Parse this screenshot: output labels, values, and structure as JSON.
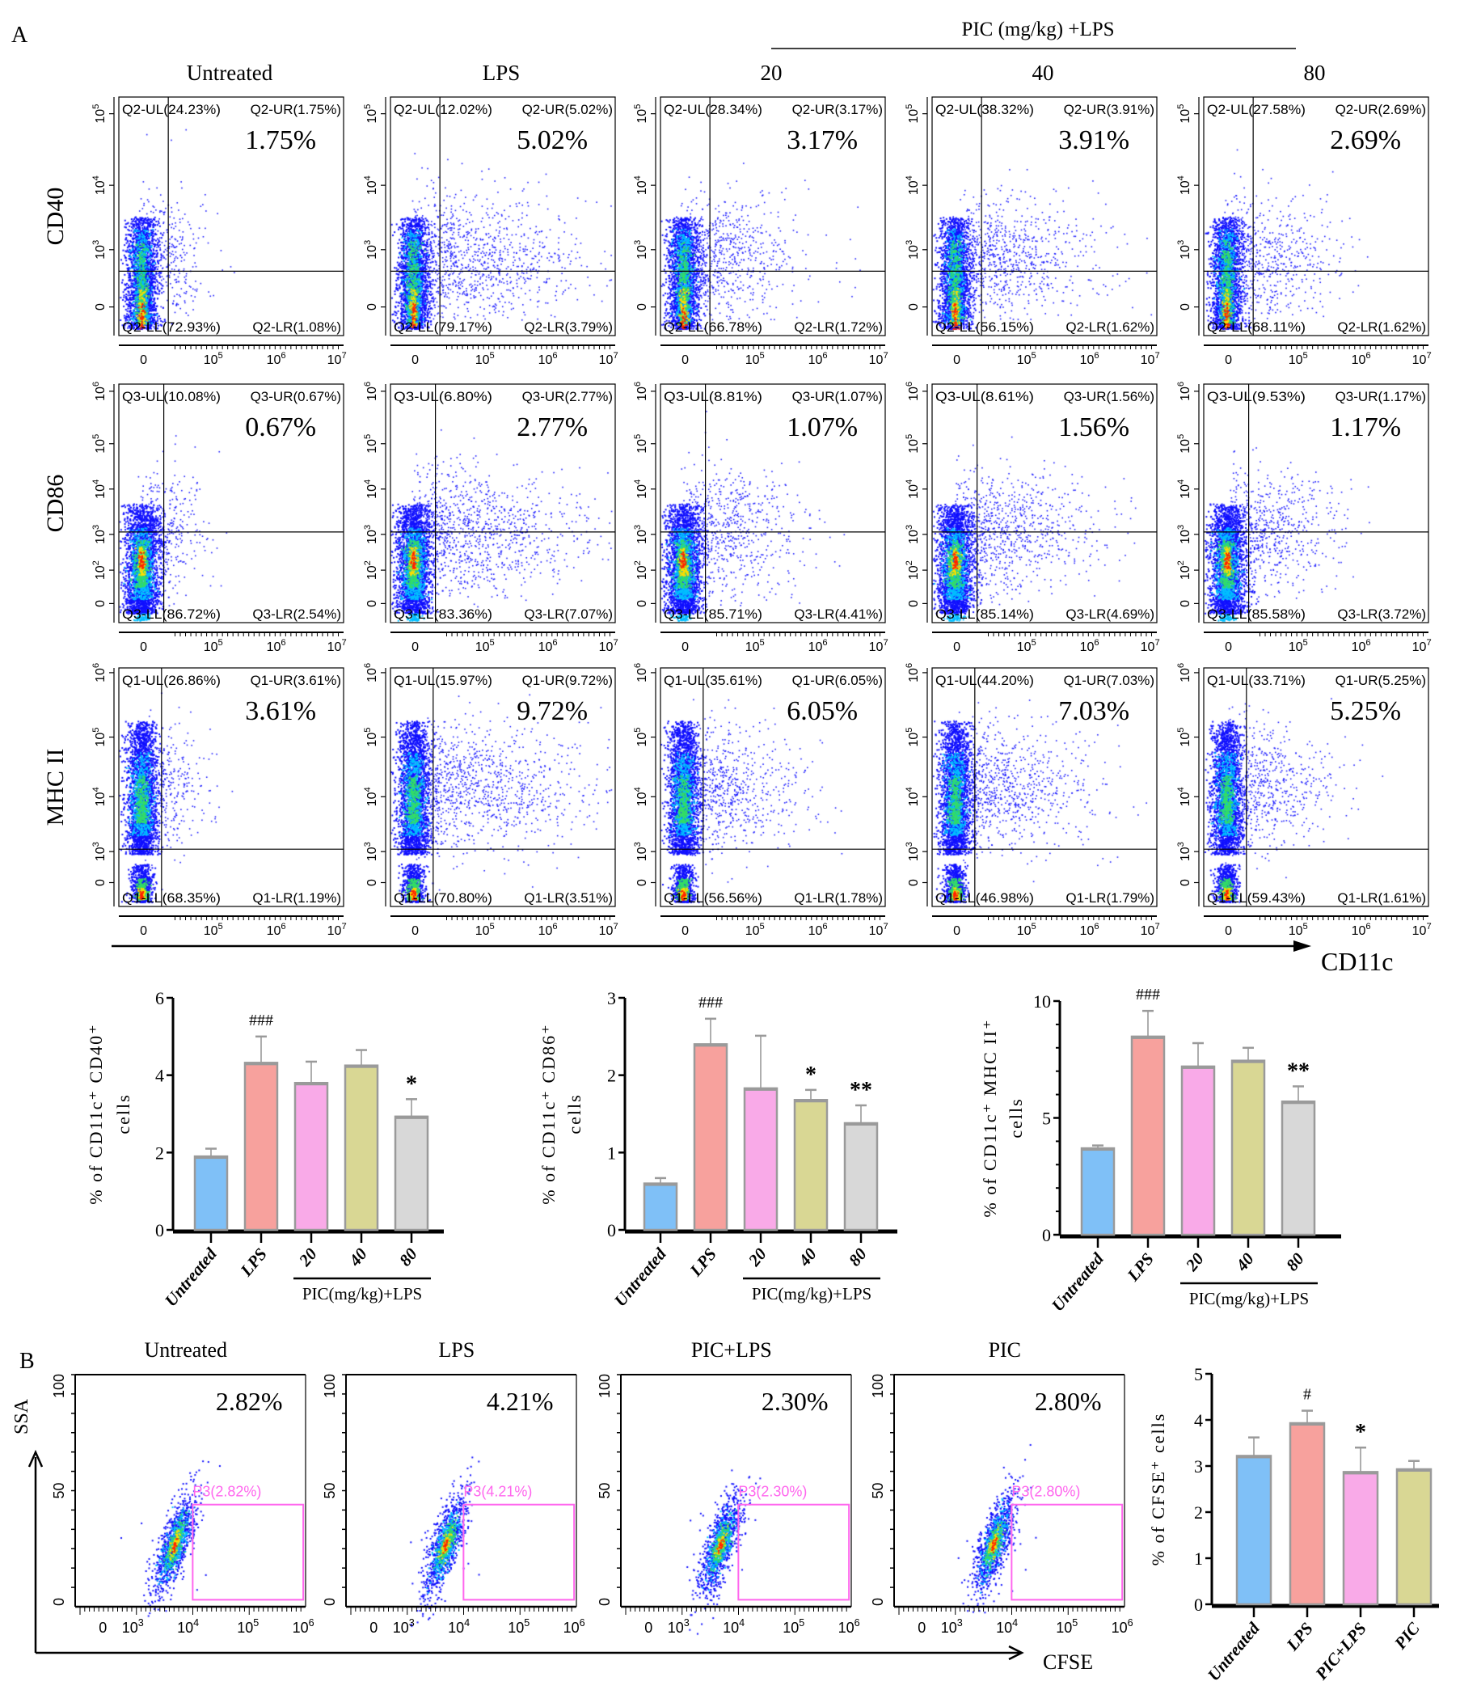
{
  "panel_a": {
    "label": "A",
    "group_header": "PIC (mg/kg) +LPS",
    "columns": [
      "Untreated",
      "LPS",
      "20",
      "40",
      "80"
    ],
    "x_axis_label": "CD11c",
    "x_ticks": [
      {
        "b": "0",
        "e": ""
      },
      {
        "b": "10",
        "e": "5"
      },
      {
        "b": "10",
        "e": "6"
      },
      {
        "b": "10",
        "e": "7"
      }
    ],
    "rows": [
      {
        "marker": "CD40",
        "y_ticks": [
          {
            "b": "0",
            "e": ""
          },
          {
            "b": "10",
            "e": "3"
          },
          {
            "b": "10",
            "e": "4"
          },
          {
            "b": "10",
            "e": "5"
          }
        ],
        "plots": [
          {
            "UL": "Q2-UL(24.23%)",
            "UR": "Q2-UR(1.75%)",
            "LL": "Q2-LL(72.93%)",
            "LR": "Q2-LR(1.08%)",
            "highlight": "1.75%"
          },
          {
            "UL": "Q2-UL(12.02%)",
            "UR": "Q2-UR(5.02%)",
            "LL": "Q2-LL(79.17%)",
            "LR": "Q2-LR(3.79%)",
            "highlight": "5.02%"
          },
          {
            "UL": "Q2-UL(28.34%)",
            "UR": "Q2-UR(3.17%)",
            "LL": "Q2-LL(66.78%)",
            "LR": "Q2-LR(1.72%)",
            "highlight": "3.17%"
          },
          {
            "UL": "Q2-UL(38.32%)",
            "UR": "Q2-UR(3.91%)",
            "LL": "Q2-LL(56.15%)",
            "LR": "Q2-LR(1.62%)",
            "highlight": "3.91%"
          },
          {
            "UL": "Q2-UL(27.58%)",
            "UR": "Q2-UR(2.69%)",
            "LL": "Q2-LL(68.11%)",
            "LR": "Q2-LR(1.62%)",
            "highlight": "2.69%"
          }
        ]
      },
      {
        "marker": "CD86",
        "y_ticks": [
          {
            "b": "0",
            "e": ""
          },
          {
            "b": "10",
            "e": "2"
          },
          {
            "b": "10",
            "e": "3"
          },
          {
            "b": "10",
            "e": "4"
          },
          {
            "b": "10",
            "e": "5"
          },
          {
            "b": "10",
            "e": "6"
          }
        ],
        "plots": [
          {
            "UL": "Q3-UL(10.08%)",
            "UR": "Q3-UR(0.67%)",
            "LL": "Q3-LL(86.72%)",
            "LR": "Q3-LR(2.54%)",
            "highlight": "0.67%"
          },
          {
            "UL": "Q3-UL(6.80%)",
            "UR": "Q3-UR(2.77%)",
            "LL": "Q3-LL(83.36%)",
            "LR": "Q3-LR(7.07%)",
            "highlight": "2.77%"
          },
          {
            "UL": "Q3-UL(8.81%)",
            "UR": "Q3-UR(1.07%)",
            "LL": "Q3-LL(85.71%)",
            "LR": "Q3-LR(4.41%)",
            "highlight": "1.07%"
          },
          {
            "UL": "Q3-UL(8.61%)",
            "UR": "Q3-UR(1.56%)",
            "LL": "Q3-LL(85.14%)",
            "LR": "Q3-LR(4.69%)",
            "highlight": "1.56%"
          },
          {
            "UL": "Q3-UL(9.53%)",
            "UR": "Q3-UR(1.17%)",
            "LL": "Q3-LL(85.58%)",
            "LR": "Q3-LR(3.72%)",
            "highlight": "1.17%"
          }
        ]
      },
      {
        "marker": "MHC II",
        "y_ticks": [
          {
            "b": "0",
            "e": ""
          },
          {
            "b": "10",
            "e": "3"
          },
          {
            "b": "10",
            "e": "4"
          },
          {
            "b": "10",
            "e": "5"
          },
          {
            "b": "10",
            "e": "6"
          }
        ],
        "plots": [
          {
            "UL": "Q1-UL(26.86%)",
            "UR": "Q1-UR(3.61%)",
            "LL": "Q1-LL(68.35%)",
            "LR": "Q1-LR(1.19%)",
            "highlight": "3.61%"
          },
          {
            "UL": "Q1-UL(15.97%)",
            "UR": "Q1-UR(9.72%)",
            "LL": "Q1-LL(70.80%)",
            "LR": "Q1-LR(3.51%)",
            "highlight": "9.72%"
          },
          {
            "UL": "Q1-UL(35.61%)",
            "UR": "Q1-UR(6.05%)",
            "LL": "Q1-LL(56.56%)",
            "LR": "Q1-LR(1.78%)",
            "highlight": "6.05%"
          },
          {
            "UL": "Q1-UL(44.20%)",
            "UR": "Q1-UR(7.03%)",
            "LL": "Q1-LL(46.98%)",
            "LR": "Q1-LR(1.79%)",
            "highlight": "7.03%"
          },
          {
            "UL": "Q1-UL(33.71%)",
            "UR": "Q1-UR(5.25%)",
            "LL": "Q1-LL(59.43%)",
            "LR": "Q1-LR(1.61%)",
            "highlight": "5.25%"
          }
        ]
      }
    ]
  },
  "panel_b": {
    "label": "B",
    "y_axis_label": "SSA",
    "x_axis_label": "CFSE",
    "y_ticks": [
      "0",
      "50",
      "100"
    ],
    "x_ticks": [
      {
        "b": "0",
        "e": ""
      },
      {
        "b": "10",
        "e": "3"
      },
      {
        "b": "10",
        "e": "4"
      },
      {
        "b": "10",
        "e": "5"
      },
      {
        "b": "10",
        "e": "6"
      }
    ],
    "plots": [
      {
        "title": "Untreated",
        "highlight": "2.82%",
        "gate": "P3(2.82%)"
      },
      {
        "title": "LPS",
        "highlight": "4.21%",
        "gate": "P3(4.21%)"
      },
      {
        "title": "PIC+LPS",
        "highlight": "2.30%",
        "gate": "P3(2.30%)"
      },
      {
        "title": "PIC",
        "highlight": "2.80%",
        "gate": "P3(2.80%)"
      }
    ]
  },
  "colors": {
    "untreated": "#7fc0f7",
    "lps": "#f7a19d",
    "pic20": "#f9aae8",
    "pic40": "#d9d794",
    "pic80": "#d8d8d8",
    "gate": "#ff66ee",
    "bar_edge": "#9a9a9a"
  },
  "chart_data": [
    {
      "type": "bar",
      "title": "",
      "ylabel": "% of CD11c⁺ CD40⁺",
      "ylabel2": "cells",
      "categories": [
        "Untreated",
        "LPS",
        "20",
        "40",
        "80"
      ],
      "group_label": "PIC(mg/kg)+LPS",
      "values": [
        1.9,
        4.32,
        3.8,
        4.25,
        2.93
      ],
      "errors": [
        0.2,
        0.68,
        0.55,
        0.4,
        0.45
      ],
      "annotations": [
        "",
        "###",
        "",
        "",
        "*"
      ],
      "ylim": [
        0,
        6
      ],
      "yticks": [
        "0",
        "2",
        "4",
        "6"
      ],
      "ytick_values": [
        0,
        2,
        4,
        6
      ],
      "minor_ticks": 0
    },
    {
      "type": "bar",
      "title": "",
      "ylabel": "% of CD11c⁺ CD86⁺",
      "ylabel2": "cells",
      "categories": [
        "Untreated",
        "LPS",
        "20",
        "40",
        "80"
      ],
      "group_label": "PIC(mg/kg)+LPS",
      "values": [
        0.6,
        2.4,
        1.83,
        1.68,
        1.38
      ],
      "errors": [
        0.07,
        0.33,
        0.68,
        0.13,
        0.23
      ],
      "annotations": [
        "",
        "###",
        "",
        "*",
        "**"
      ],
      "ylim": [
        0,
        3
      ],
      "yticks": [
        "0",
        "1",
        "2",
        "3"
      ],
      "ytick_values": [
        0,
        1,
        2,
        3
      ],
      "minor_ticks": 0
    },
    {
      "type": "bar",
      "title": "",
      "ylabel": "% of CD11c⁺ MHC II⁺",
      "ylabel2": "cells",
      "categories": [
        "Untreated",
        "LPS",
        "20",
        "40",
        "80"
      ],
      "group_label": "PIC(mg/kg)+LPS",
      "values": [
        3.7,
        8.48,
        7.2,
        7.45,
        5.7
      ],
      "errors": [
        0.12,
        1.1,
        1.0,
        0.55,
        0.65
      ],
      "annotations": [
        "",
        "###",
        "",
        "",
        "**"
      ],
      "ylim": [
        0,
        10
      ],
      "yticks": [
        "0",
        "5",
        "10"
      ],
      "ytick_values": [
        0,
        5,
        10
      ],
      "minor_ticks": 1
    },
    {
      "type": "bar",
      "title": "",
      "ylabel": "% of CFSE⁺ cells",
      "ylabel2": "",
      "categories": [
        "Untreated",
        "LPS",
        "PIC+LPS",
        "PIC"
      ],
      "group_label": "",
      "values": [
        3.22,
        3.93,
        2.87,
        2.93
      ],
      "errors": [
        0.4,
        0.27,
        0.53,
        0.18
      ],
      "annotations": [
        "",
        "#",
        "*",
        ""
      ],
      "ylim": [
        0,
        5
      ],
      "yticks": [
        "0",
        "1",
        "2",
        "3",
        "4",
        "5"
      ],
      "ytick_values": [
        0,
        1,
        2,
        3,
        4,
        5
      ],
      "minor_ticks": 0
    }
  ]
}
